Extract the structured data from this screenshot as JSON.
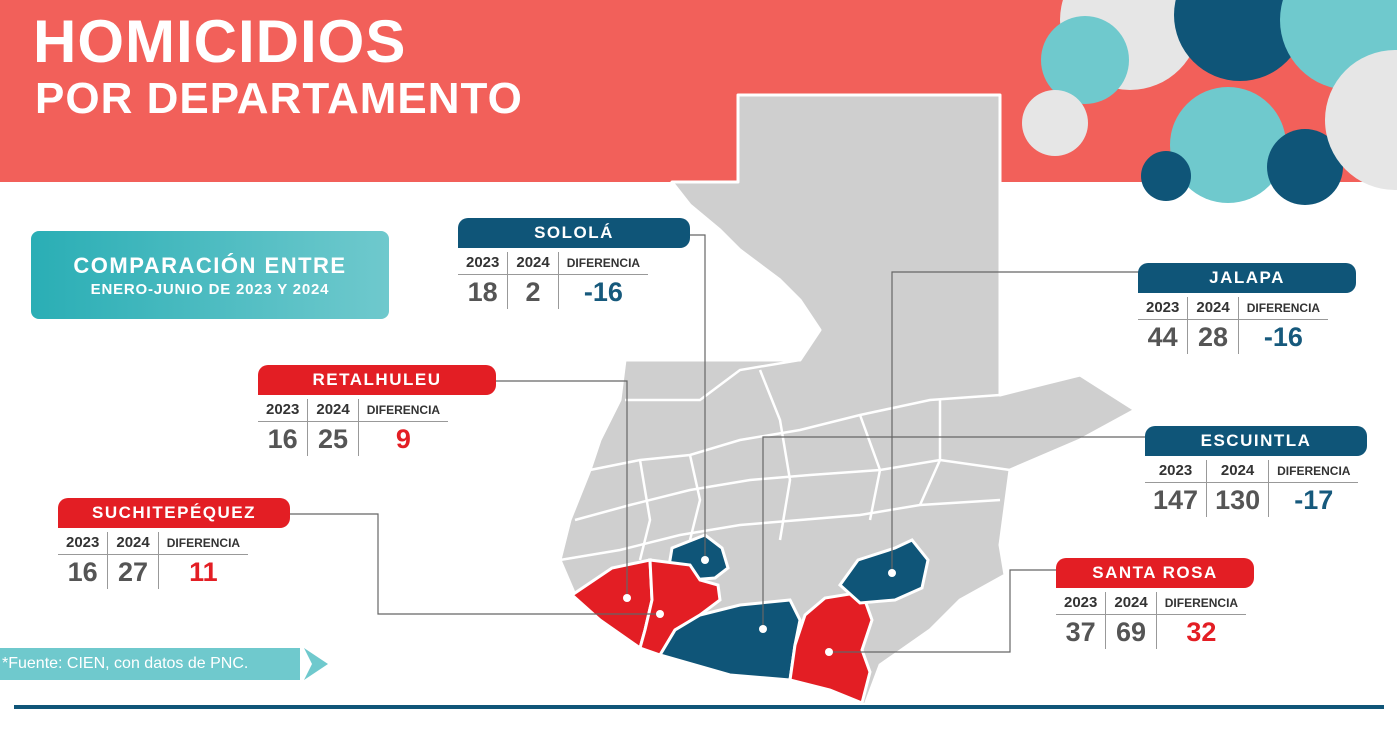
{
  "header": {
    "title_line1": "HOMICIDIOS",
    "title_line2": "POR DEPARTAMENTO"
  },
  "comparison": {
    "line1": "COMPARACIÓN ENTRE",
    "line2": "ENERO-JUNIO DE 2023 Y 2024"
  },
  "table_headers": {
    "y2023": "2023",
    "y2024": "2024",
    "diff": "DIFERENCIA"
  },
  "departments": {
    "solola": {
      "name": "SOLOLÁ",
      "v2023": "18",
      "v2024": "2",
      "diff": "-16"
    },
    "retalhuleu": {
      "name": "RETALHULEU",
      "v2023": "16",
      "v2024": "25",
      "diff": "9"
    },
    "suchitepequez": {
      "name": "SUCHITEPÉQUEZ",
      "v2023": "16",
      "v2024": "27",
      "diff": "11"
    },
    "jalapa": {
      "name": "JALAPA",
      "v2023": "44",
      "v2024": "28",
      "diff": "-16"
    },
    "escuintla": {
      "name": "ESCUINTLA",
      "v2023": "147",
      "v2024": "130",
      "diff": "-17"
    },
    "santa_rosa": {
      "name": "SANTA ROSA",
      "v2023": "37",
      "v2024": "69",
      "diff": "32"
    }
  },
  "source": "*Fuente: CIEN, con datos de PNC.",
  "colors": {
    "banner": "#f2605a",
    "navy": "#0f5578",
    "red": "#e31e24",
    "teal": "#6fc9cd",
    "map_gray": "#cfcfcf"
  }
}
